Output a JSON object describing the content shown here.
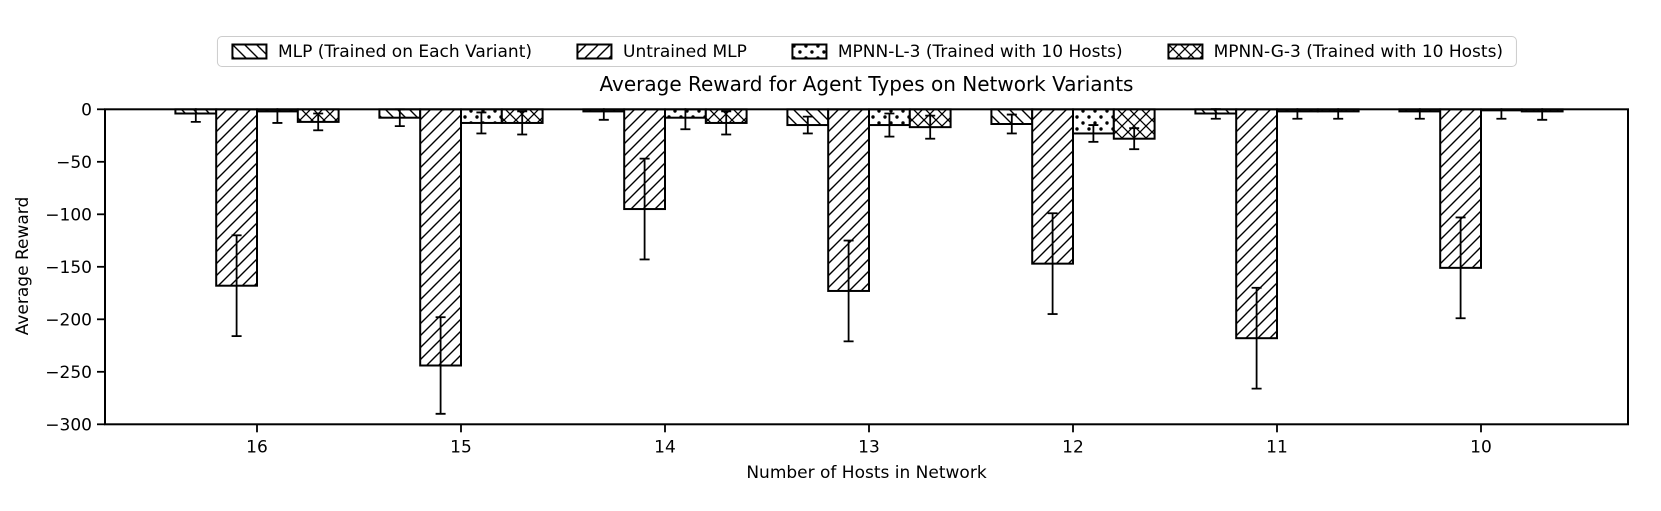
{
  "chart_data": {
    "type": "bar",
    "title": "Average Reward for Agent Types on Network Variants",
    "xlabel": "Number of Hosts in Network",
    "ylabel": "Average Reward",
    "categories": [
      "16",
      "15",
      "14",
      "13",
      "12",
      "11",
      "10"
    ],
    "series": [
      {
        "name": "MLP (Trained on Each Variant)",
        "hatch": "backslash",
        "values": [
          -4,
          -8,
          -2,
          -15,
          -14,
          -4,
          -2
        ],
        "errors": [
          8,
          8,
          8,
          8,
          9,
          5,
          7
        ]
      },
      {
        "name": "Untrained MLP",
        "hatch": "slash",
        "values": [
          -168,
          -244,
          -95,
          -173,
          -147,
          -218,
          -151
        ],
        "errors": [
          48,
          46,
          48,
          48,
          48,
          48,
          48
        ]
      },
      {
        "name": "MPNN-L-3 (Trained with 10 Hosts)",
        "hatch": "dots",
        "values": [
          -2,
          -13,
          -8,
          -15,
          -23,
          -2,
          -1
        ],
        "errors": [
          11,
          10,
          11,
          11,
          8,
          7,
          8
        ]
      },
      {
        "name": "MPNN-G-3 (Trained with 10 Hosts)",
        "hatch": "cross",
        "values": [
          -12,
          -13,
          -13,
          -17,
          -28,
          -2,
          -2
        ],
        "errors": [
          8,
          11,
          11,
          11,
          10,
          7,
          8
        ]
      }
    ],
    "ylim": [
      -300,
      0
    ],
    "yticks": [
      0,
      -50,
      -100,
      -150,
      -200,
      -250,
      -300
    ],
    "legend_position": "upper center",
    "grid": false,
    "bar_fill": "#ffffff",
    "line_color": "#000000",
    "legend_border_color": "#cccccc"
  }
}
